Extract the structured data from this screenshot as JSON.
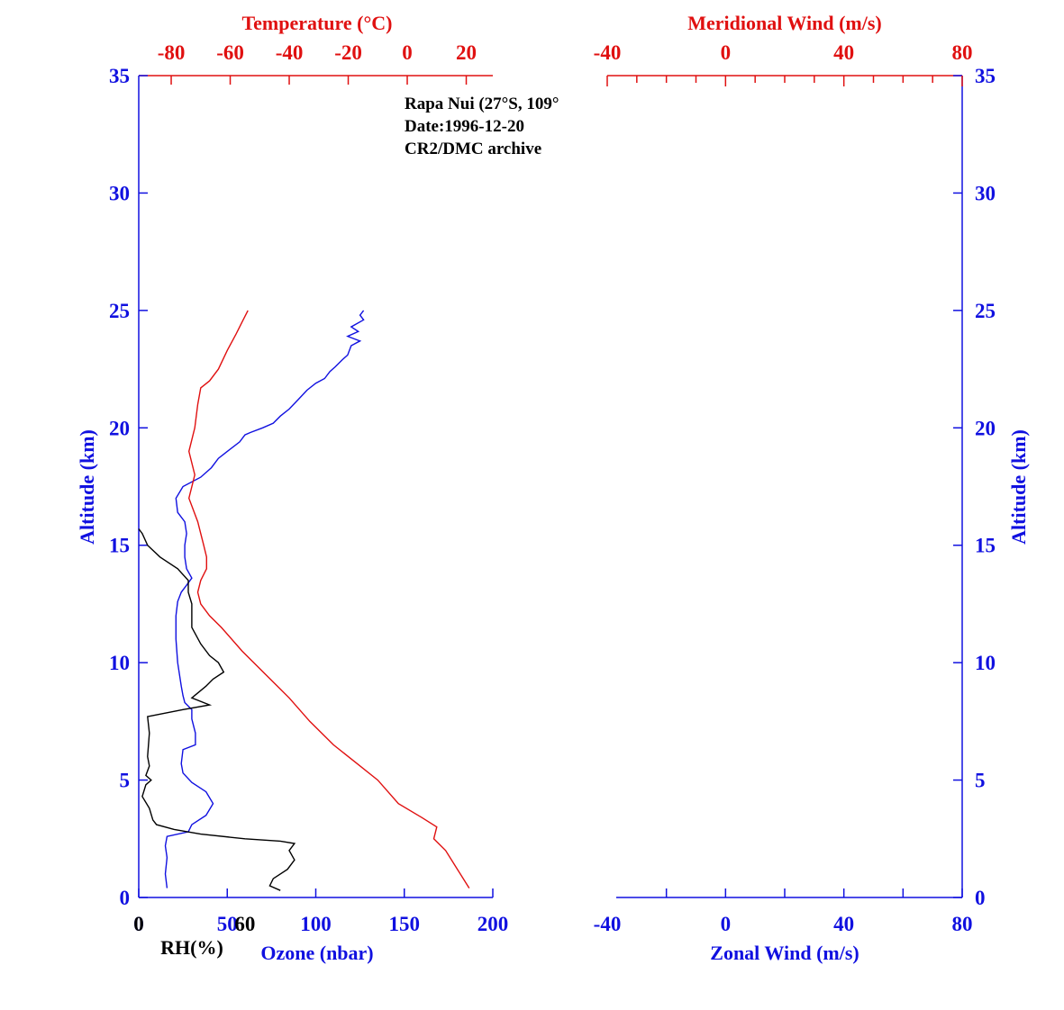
{
  "chart_data": {
    "type": "line",
    "annotation": [
      "Rapa Nui (27°S, 109°",
      "Date:1996-12-20",
      "CR2/DMC archive"
    ],
    "colors": {
      "ozone": "#1010e0",
      "temperature": "#e01010",
      "rh": "#000000",
      "wind_axes": "#1010e0"
    },
    "left_panel": {
      "ylabel": "Altitude (km)",
      "ylim": [
        0,
        35
      ],
      "yticks": [
        0,
        5,
        10,
        15,
        20,
        25,
        30,
        35
      ],
      "temperature_axis": {
        "label": "Temperature (°C)",
        "ticks": [
          -80,
          -60,
          -40,
          -20,
          0,
          20
        ],
        "range": [
          -91,
          29
        ]
      },
      "ozone_axis": {
        "label": "Ozone (nbar)",
        "ticks": [
          0,
          50,
          100,
          150,
          200
        ],
        "range": [
          0,
          200
        ]
      },
      "rh_label": "RH(%)",
      "rh_tick_labels": [
        "0",
        "60"
      ],
      "rh_range": [
        0,
        200
      ],
      "series": [
        {
          "key": "ozone",
          "points": [
            [
              16,
              0.4
            ],
            [
              15,
              1.0
            ],
            [
              16,
              1.7
            ],
            [
              15,
              2.2
            ],
            [
              16,
              2.6
            ],
            [
              28,
              2.8
            ],
            [
              30,
              3.1
            ],
            [
              38,
              3.5
            ],
            [
              42,
              4.0
            ],
            [
              38,
              4.5
            ],
            [
              30,
              4.9
            ],
            [
              25,
              5.3
            ],
            [
              24,
              5.7
            ],
            [
              25,
              6.3
            ],
            [
              32,
              6.5
            ],
            [
              32,
              7.0
            ],
            [
              30,
              7.6
            ],
            [
              30,
              8.0
            ],
            [
              26,
              8.3
            ],
            [
              25,
              8.6
            ],
            [
              24,
              9.0
            ],
            [
              23,
              9.5
            ],
            [
              22,
              10.0
            ],
            [
              21,
              11.0
            ],
            [
              21,
              12.0
            ],
            [
              22,
              12.6
            ],
            [
              24,
              13.0
            ],
            [
              27,
              13.3
            ],
            [
              30,
              13.6
            ],
            [
              27,
              14.0
            ],
            [
              26,
              14.5
            ],
            [
              26,
              15.0
            ],
            [
              27,
              15.5
            ],
            [
              26,
              16.0
            ],
            [
              22,
              16.4
            ],
            [
              21,
              17.0
            ],
            [
              25,
              17.5
            ],
            [
              35,
              17.9
            ],
            [
              41,
              18.3
            ],
            [
              45,
              18.7
            ],
            [
              50,
              19.0
            ],
            [
              57,
              19.4
            ],
            [
              60,
              19.7
            ],
            [
              63,
              19.8
            ],
            [
              70,
              20.0
            ],
            [
              76,
              20.2
            ],
            [
              80,
              20.5
            ],
            [
              85,
              20.8
            ],
            [
              90,
              21.2
            ],
            [
              95,
              21.6
            ],
            [
              100,
              21.9
            ],
            [
              105,
              22.1
            ],
            [
              108,
              22.4
            ],
            [
              111,
              22.6
            ],
            [
              115,
              22.9
            ],
            [
              118,
              23.1
            ],
            [
              120,
              23.5
            ],
            [
              125,
              23.7
            ],
            [
              118,
              23.9
            ],
            [
              124,
              24.1
            ],
            [
              120,
              24.3
            ],
            [
              127,
              24.6
            ],
            [
              125,
              24.8
            ],
            [
              127,
              25.0
            ]
          ]
        },
        {
          "key": "temperature",
          "points": [
            [
              21,
              0.4
            ],
            [
              17,
              1.2
            ],
            [
              13,
              2.0
            ],
            [
              9,
              2.5
            ],
            [
              10,
              3.0
            ],
            [
              5,
              3.4
            ],
            [
              -3,
              4.0
            ],
            [
              -10,
              5.0
            ],
            [
              -18,
              5.8
            ],
            [
              -25,
              6.5
            ],
            [
              -33,
              7.5
            ],
            [
              -40,
              8.5
            ],
            [
              -48,
              9.5
            ],
            [
              -56,
              10.5
            ],
            [
              -63,
              11.5
            ],
            [
              -67,
              12.0
            ],
            [
              -70,
              12.5
            ],
            [
              -71,
              13.0
            ],
            [
              -70,
              13.5
            ],
            [
              -68,
              14.0
            ],
            [
              -68,
              14.5
            ],
            [
              -69,
              15.0
            ],
            [
              -70,
              15.5
            ],
            [
              -71,
              16.0
            ],
            [
              -74,
              17.0
            ],
            [
              -72,
              18.0
            ],
            [
              -74,
              19.0
            ],
            [
              -72,
              20.0
            ],
            [
              -71,
              21.0
            ],
            [
              -70,
              21.7
            ],
            [
              -67,
              22.0
            ],
            [
              -64,
              22.5
            ],
            [
              -61,
              23.3
            ],
            [
              -58,
              24.0
            ],
            [
              -56,
              24.5
            ],
            [
              -54,
              25.0
            ]
          ]
        },
        {
          "key": "rh",
          "points": [
            [
              80,
              0.3
            ],
            [
              74,
              0.5
            ],
            [
              76,
              0.8
            ],
            [
              84,
              1.2
            ],
            [
              88,
              1.6
            ],
            [
              85,
              2.0
            ],
            [
              88,
              2.3
            ],
            [
              80,
              2.4
            ],
            [
              60,
              2.5
            ],
            [
              35,
              2.7
            ],
            [
              20,
              2.9
            ],
            [
              10,
              3.1
            ],
            [
              8,
              3.3
            ],
            [
              6,
              3.8
            ],
            [
              2,
              4.3
            ],
            [
              4,
              4.8
            ],
            [
              7,
              5.0
            ],
            [
              4,
              5.2
            ],
            [
              6,
              5.6
            ],
            [
              5,
              6.0
            ],
            [
              6,
              7.0
            ],
            [
              5,
              7.7
            ],
            [
              25,
              8.0
            ],
            [
              40,
              8.2
            ],
            [
              30,
              8.5
            ],
            [
              38,
              9.0
            ],
            [
              42,
              9.3
            ],
            [
              48,
              9.6
            ],
            [
              45,
              10.0
            ],
            [
              40,
              10.3
            ],
            [
              35,
              10.8
            ],
            [
              30,
              11.5
            ],
            [
              30,
              12.0
            ],
            [
              30,
              12.5
            ],
            [
              28,
              13.0
            ],
            [
              28,
              13.5
            ],
            [
              22,
              14.0
            ],
            [
              12,
              14.5
            ],
            [
              5,
              15.0
            ],
            [
              2,
              15.5
            ],
            [
              0,
              15.7
            ]
          ]
        }
      ]
    },
    "right_panel": {
      "zonal_axis": {
        "label": "Zonal Wind (m/s)",
        "ticks": [
          -40,
          0,
          40,
          80
        ],
        "range": [
          -40,
          80
        ]
      },
      "meridional_axis": {
        "label": "Meridional Wind (m/s)",
        "ticks": [
          -40,
          0,
          40,
          80
        ],
        "range": [
          -40,
          80
        ]
      },
      "ylabel": "Altitude (km)",
      "yticks": [
        0,
        5,
        10,
        15,
        20,
        25,
        30,
        35
      ]
    }
  }
}
